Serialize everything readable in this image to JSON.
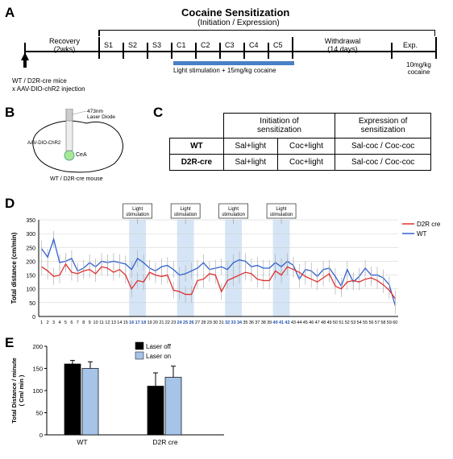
{
  "A": {
    "letter": "A"
  },
  "B": {
    "letter": "B"
  },
  "C": {
    "letter": "C"
  },
  "D": {
    "letter": "D"
  },
  "E": {
    "letter": "E"
  },
  "timeline": {
    "title": "Cocaine Sensitization",
    "subtitle": "(Initiation / Expression)",
    "recovery": "Recovery\n(2wks)",
    "withdrawal": "Withdrawal\n(14 days)",
    "exp": "Exp.",
    "sessions": [
      "S1",
      "S2",
      "S3",
      "C1",
      "C2",
      "C3",
      "C4",
      "C5"
    ],
    "light_text": "Light stimulation + 15mg/kg cocaine",
    "challenge": "10mg/kg\ncocaine",
    "inj_line1": "WT / D2R-cre mice",
    "inj_line2": "x AAV-DIO-chR2 injection"
  },
  "brain": {
    "laser": "473nm\nLaser Diode",
    "aav": "AAV-DIO-ChR2",
    "cea": "CeA",
    "mouse": "WT / D2R-cre mouse"
  },
  "table": {
    "col1": "Initiation of\nsensitization",
    "col2": "Expression of\nsensitization",
    "rows": [
      {
        "label": "WT",
        "c1": "Sal+light",
        "c2": "Coc+light",
        "c3": "Sal-coc / Coc-coc"
      },
      {
        "label": "D2R-cre",
        "c1": "Sal+light",
        "c2": "Coc+light",
        "c3": "Sal-coc / Coc-coc"
      }
    ]
  },
  "chartD": {
    "ylabel": "Total distance (cm/min)",
    "ylim": [
      0,
      350
    ],
    "ytick": 50,
    "xcount": 60,
    "light_label": "Light\nstimulation",
    "light_bands": [
      [
        16,
        18
      ],
      [
        24,
        26
      ],
      [
        32,
        34
      ],
      [
        40,
        42
      ]
    ],
    "highlight_x": [
      16,
      17,
      18,
      24,
      25,
      26,
      32,
      33,
      34,
      40,
      41,
      42
    ],
    "legend": {
      "d2r": "D2R cre",
      "wt": "WT"
    },
    "colors": {
      "d2r": "#e03030",
      "wt": "#3060d0",
      "band": "#d5e5f5",
      "err": "#b0b0b0"
    },
    "d2r": [
      180,
      165,
      145,
      150,
      190,
      160,
      155,
      165,
      170,
      155,
      180,
      175,
      160,
      170,
      150,
      100,
      130,
      125,
      160,
      150,
      145,
      150,
      95,
      90,
      80,
      80,
      130,
      135,
      155,
      150,
      90,
      130,
      140,
      150,
      160,
      155,
      135,
      130,
      130,
      165,
      150,
      180,
      170,
      160,
      145,
      135,
      125,
      140,
      155,
      110,
      100,
      125,
      130,
      125,
      135,
      140,
      130,
      115,
      95,
      65
    ],
    "wt": [
      245,
      215,
      280,
      195,
      200,
      210,
      165,
      175,
      195,
      180,
      200,
      195,
      200,
      195,
      190,
      170,
      210,
      195,
      175,
      165,
      180,
      185,
      170,
      150,
      155,
      165,
      175,
      195,
      170,
      175,
      180,
      170,
      195,
      205,
      200,
      180,
      185,
      175,
      175,
      195,
      180,
      200,
      185,
      135,
      170,
      165,
      145,
      170,
      175,
      145,
      110,
      170,
      125,
      145,
      175,
      150,
      150,
      140,
      115,
      40
    ],
    "err": 30
  },
  "chartE": {
    "ylabel": "Total Distance / minute\n( Cm/ min )",
    "ylim": [
      0,
      200
    ],
    "ytick": 50,
    "groups": [
      "WT",
      "D2R cre"
    ],
    "series": [
      {
        "name": "Laser off",
        "color": "#000000",
        "values": [
          160,
          110
        ],
        "err": [
          8,
          30
        ]
      },
      {
        "name": "Laser on",
        "color": "#a6c3e8",
        "values": [
          150,
          130
        ],
        "err": [
          15,
          25
        ]
      }
    ]
  }
}
